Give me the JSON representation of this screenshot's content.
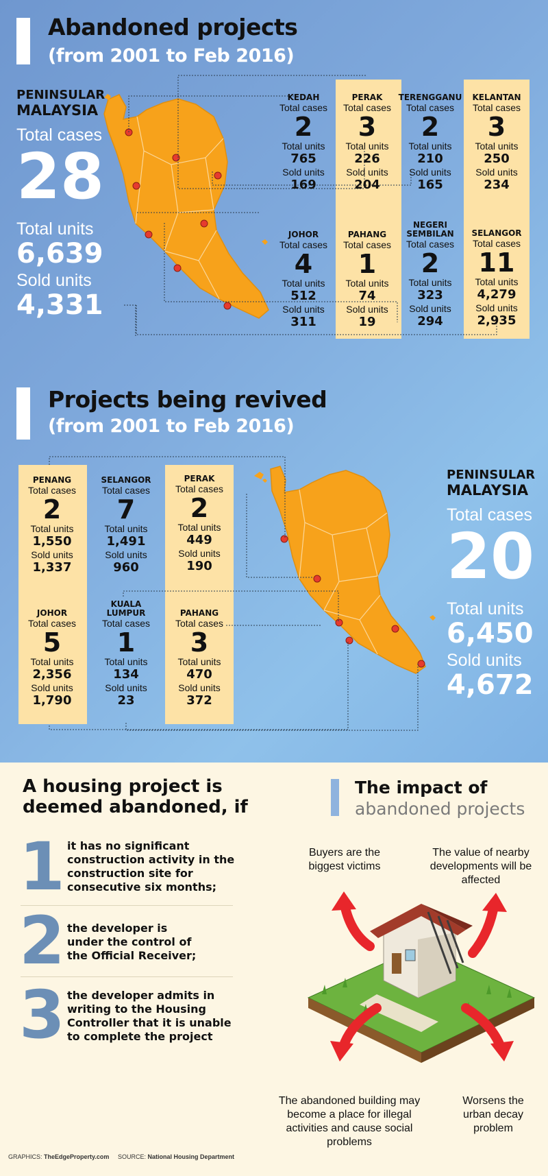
{
  "abandoned": {
    "title": "Abandoned projects",
    "subtitle": "(from 2001 to Feb 2016)",
    "summary": {
      "region_line1": "PENINSULAR",
      "region_line2": "MALAYSIA",
      "cases_label": "Total cases",
      "cases": "28",
      "units_label": "Total units",
      "units": "6,639",
      "sold_label": "Sold units",
      "sold": "4,331"
    },
    "states": [
      {
        "name": "KEDAH",
        "cases_label": "Total cases",
        "cases": "2",
        "units_label": "Total units",
        "units": "765",
        "sold_label": "Sold units",
        "sold": "169"
      },
      {
        "name": "PERAK",
        "cases_label": "Total cases",
        "cases": "3",
        "units_label": "Total units",
        "units": "226",
        "sold_label": "Sold units",
        "sold": "204"
      },
      {
        "name": "TERENGGANU",
        "cases_label": "Total cases",
        "cases": "2",
        "units_label": "Total units",
        "units": "210",
        "sold_label": "Sold units",
        "sold": "165"
      },
      {
        "name": "KELANTAN",
        "cases_label": "Total cases",
        "cases": "3",
        "units_label": "Total units",
        "units": "250",
        "sold_label": "Sold units",
        "sold": "234"
      },
      {
        "name": "JOHOR",
        "cases_label": "Total cases",
        "cases": "4",
        "units_label": "Total units",
        "units": "512",
        "sold_label": "Sold units",
        "sold": "311"
      },
      {
        "name": "PAHANG",
        "cases_label": "Total cases",
        "cases": "1",
        "units_label": "Total units",
        "units": "74",
        "sold_label": "Sold units",
        "sold": "19"
      },
      {
        "name": "NEGERI\nSEMBILAN",
        "cases_label": "Total cases",
        "cases": "2",
        "units_label": "Total units",
        "units": "323",
        "sold_label": "Sold units",
        "sold": "294"
      },
      {
        "name": "SELANGOR",
        "cases_label": "Total cases",
        "cases": "11",
        "units_label": "Total units",
        "units": "4,279",
        "sold_label": "Sold units",
        "sold": "2,935"
      }
    ]
  },
  "revived": {
    "title": "Projects being revived",
    "subtitle": "(from 2001 to Feb 2016)",
    "summary": {
      "region_line1": "PENINSULAR",
      "region_line2": "MALAYSIA",
      "cases_label": "Total cases",
      "cases": "20",
      "units_label": "Total units",
      "units": "6,450",
      "sold_label": "Sold units",
      "sold": "4,672"
    },
    "states": [
      {
        "name": "PENANG",
        "cases_label": "Total cases",
        "cases": "2",
        "units_label": "Total units",
        "units": "1,550",
        "sold_label": "Sold units",
        "sold": "1,337"
      },
      {
        "name": "SELANGOR",
        "cases_label": "Total cases",
        "cases": "7",
        "units_label": "Total units",
        "units": "1,491",
        "sold_label": "Sold units",
        "sold": "960"
      },
      {
        "name": "PERAK",
        "cases_label": "Total cases",
        "cases": "2",
        "units_label": "Total units",
        "units": "449",
        "sold_label": "Sold units",
        "sold": "190"
      },
      {
        "name": "JOHOR",
        "cases_label": "Total cases",
        "cases": "5",
        "units_label": "Total units",
        "units": "2,356",
        "sold_label": "Sold units",
        "sold": "1,790"
      },
      {
        "name": "KUALA\nLUMPUR",
        "cases_label": "Total cases",
        "cases": "1",
        "units_label": "Total units",
        "units": "134",
        "sold_label": "Sold units",
        "sold": "23"
      },
      {
        "name": "PAHANG",
        "cases_label": "Total cases",
        "cases": "3",
        "units_label": "Total units",
        "units": "470",
        "sold_label": "Sold units",
        "sold": "372"
      }
    ]
  },
  "definition": {
    "title_line1": "A housing project is",
    "title_line2": "deemed abandoned, if",
    "criteria": [
      {
        "num": "1",
        "text": "it has no significant construction activity in the construction site for consecutive six months;"
      },
      {
        "num": "2",
        "text": "the developer is under the control of the Official Receiver;"
      },
      {
        "num": "3",
        "text": "the developer admits in writing to the Housing Controller that it is unable to complete the project"
      }
    ]
  },
  "impact": {
    "title_line1": "The impact of",
    "title_line2": "abandoned projects",
    "effects": [
      "Buyers are the biggest victims",
      "The value of nearby developments will be affected",
      "The abandoned building may become a place for illegal activities and cause social problems",
      "Worsens the urban decay problem"
    ]
  },
  "credits": {
    "graphics_label": "GRAPHICS:",
    "graphics": "TheEdgeProperty.com",
    "source_label": "SOURCE:",
    "source": "National Housing Department"
  },
  "colors": {
    "background_blue": "#7fa9dc",
    "highlight_column": "#fde2a6",
    "map_fill": "#f7a21b",
    "marker": "#e63b2e",
    "arrow": "#e8262b",
    "number_blue": "#6c8fb6",
    "cream": "#fdf6e3"
  }
}
